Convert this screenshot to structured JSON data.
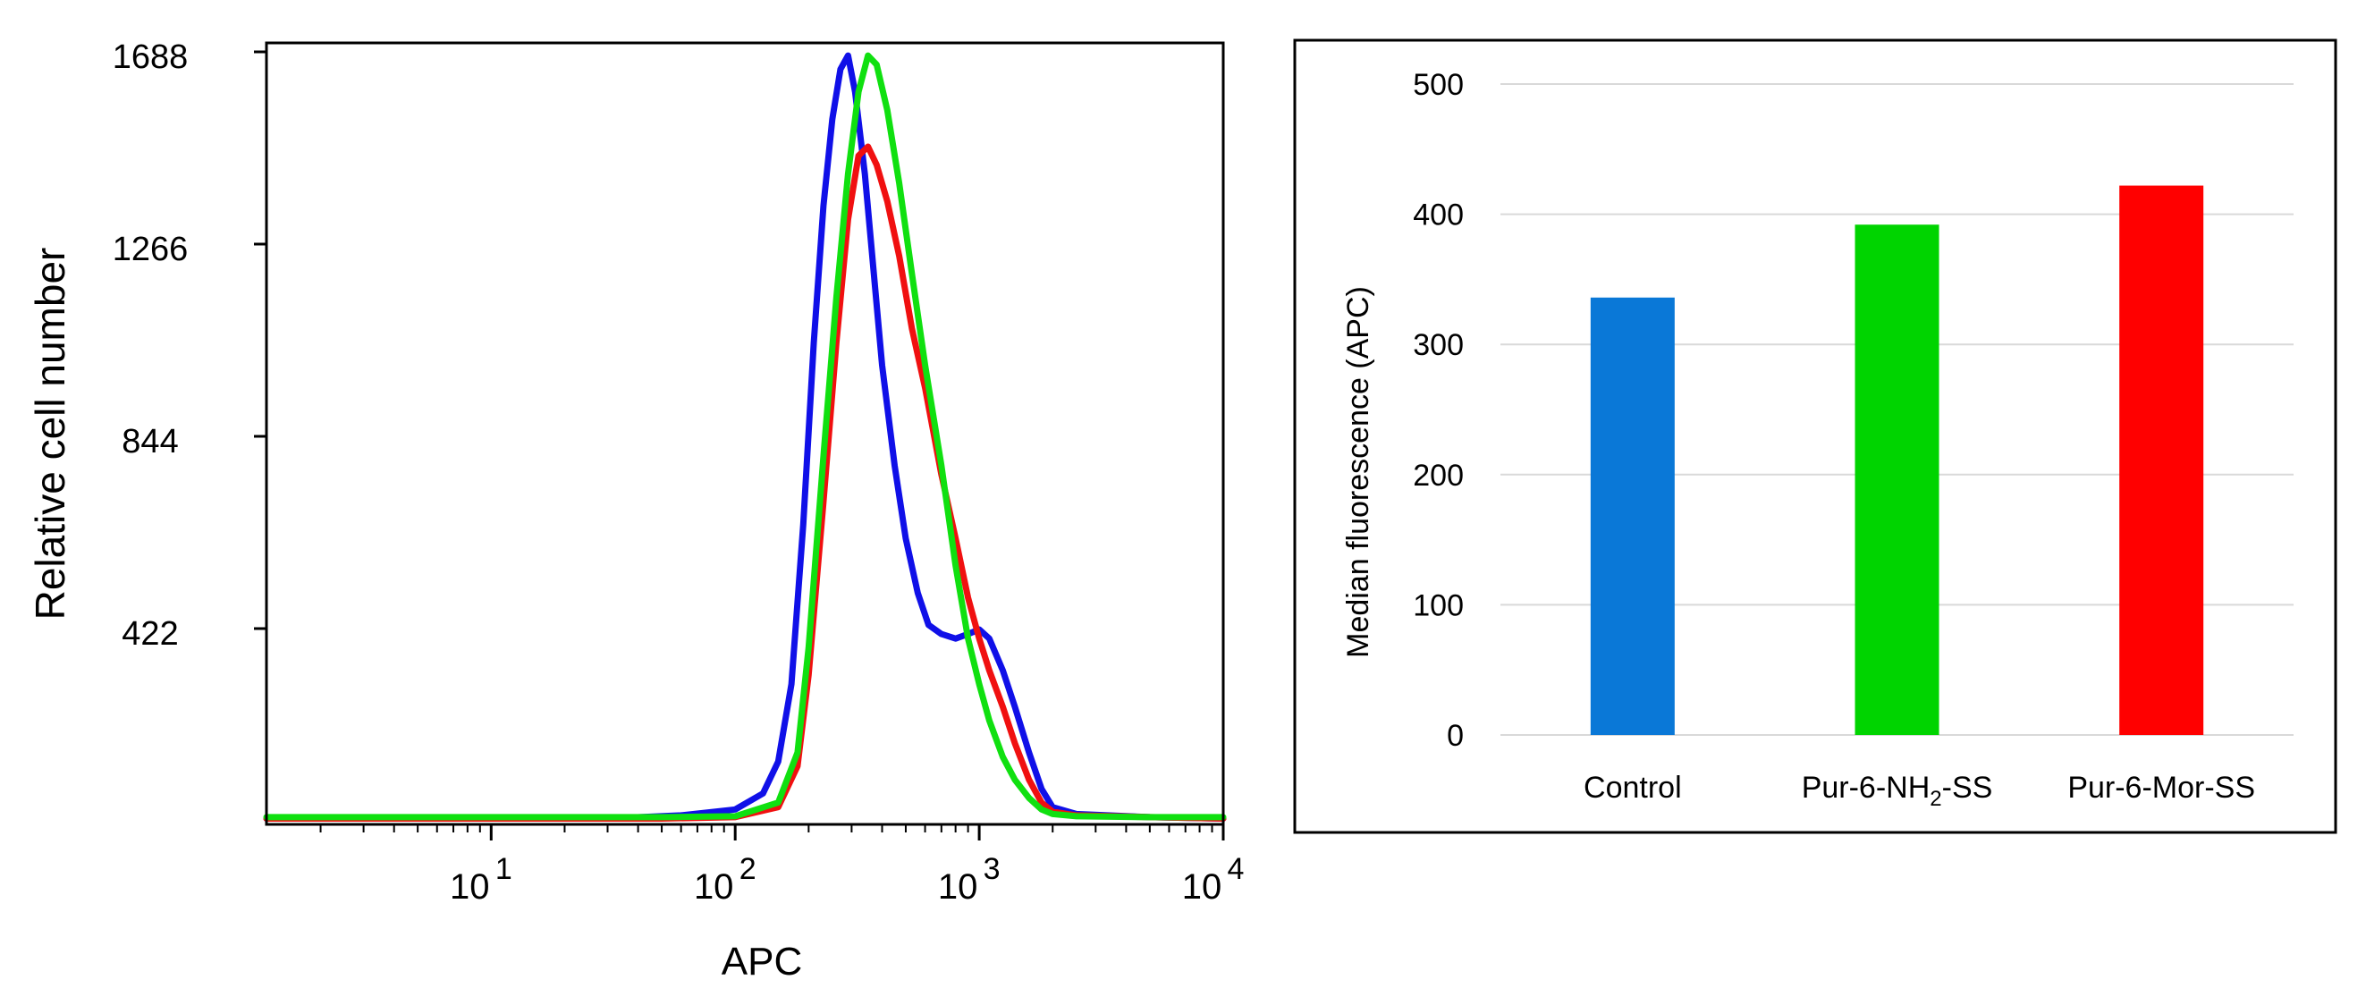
{
  "chart_data": [
    {
      "type": "line",
      "title": "",
      "xlabel": "APC",
      "ylabel": "Relative cell number",
      "xscale": "log",
      "xlim": [
        1.2,
        10000
      ],
      "ylim": [
        0,
        1688
      ],
      "y_ticks": [
        422,
        844,
        1266,
        1688
      ],
      "y_tick_labels": [
        "422",
        "844",
        "1266",
        "1688"
      ],
      "x_ticks": [
        10,
        100,
        1000,
        10000
      ],
      "x_tick_base": "10",
      "x_tick_exponents": [
        "1",
        "2",
        "3",
        "4"
      ],
      "grid": false,
      "series": [
        {
          "name": "blue",
          "color": "#1010e8",
          "x": [
            1.2,
            30,
            60,
            100,
            130,
            150,
            170,
            190,
            210,
            230,
            250,
            270,
            290,
            310,
            340,
            370,
            400,
            450,
            500,
            560,
            620,
            700,
            800,
            900,
            1000,
            1100,
            1250,
            1400,
            1600,
            1800,
            2000,
            2500,
            5000,
            10000
          ],
          "y": [
            5,
            5,
            12,
            25,
            60,
            130,
            300,
            650,
            1050,
            1350,
            1540,
            1650,
            1680,
            1600,
            1420,
            1200,
            1000,
            780,
            620,
            500,
            430,
            410,
            400,
            410,
            420,
            400,
            330,
            250,
            150,
            70,
            30,
            15,
            8,
            5
          ]
        },
        {
          "name": "red",
          "color": "#f01010",
          "x": [
            1.2,
            50,
            100,
            150,
            180,
            200,
            230,
            260,
            290,
            320,
            350,
            380,
            420,
            470,
            530,
            600,
            700,
            800,
            900,
            1000,
            1100,
            1250,
            1400,
            1600,
            1800,
            2000,
            2500,
            5000,
            10000
          ],
          "y": [
            5,
            5,
            8,
            30,
            120,
            320,
            700,
            1050,
            1320,
            1460,
            1480,
            1440,
            1360,
            1240,
            1080,
            950,
            760,
            620,
            490,
            400,
            330,
            250,
            170,
            90,
            40,
            20,
            12,
            8,
            5
          ]
        },
        {
          "name": "green",
          "color": "#10e010",
          "x": [
            1.2,
            50,
            100,
            150,
            180,
            200,
            230,
            260,
            290,
            320,
            350,
            380,
            420,
            470,
            530,
            600,
            700,
            800,
            900,
            1000,
            1100,
            1250,
            1400,
            1600,
            1800,
            2000,
            2500,
            5000,
            10000
          ],
          "y": [
            8,
            8,
            10,
            40,
            150,
            380,
            800,
            1150,
            1420,
            1600,
            1680,
            1660,
            1560,
            1400,
            1200,
            1000,
            780,
            560,
            400,
            300,
            220,
            140,
            90,
            50,
            25,
            15,
            10,
            8,
            8
          ]
        }
      ]
    },
    {
      "type": "bar",
      "title": "",
      "xlabel": "",
      "ylabel": "Median fluorescence (APC)",
      "ylim": [
        0,
        500
      ],
      "y_ticks": [
        0,
        100,
        200,
        300,
        400,
        500
      ],
      "grid": true,
      "legend": "none",
      "categories": [
        "Control",
        "Pur-6-NH2-SS",
        "Pur-6-Mor-SS"
      ],
      "values": [
        336,
        392,
        422
      ],
      "colors": [
        "#0a78d7",
        "#00d400",
        "#ff0000"
      ]
    }
  ],
  "labels": {
    "pur_nh2_prefix": "Pur-6-NH",
    "pur_nh2_sub": "2",
    "pur_nh2_suffix": "-SS"
  }
}
